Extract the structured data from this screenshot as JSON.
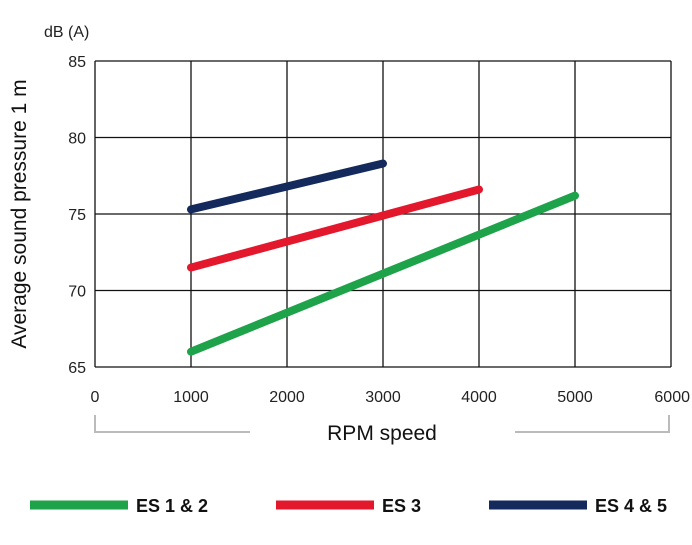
{
  "chart_data": {
    "type": "line",
    "title": "",
    "unit_label": "dB (A)",
    "ylabel": "Average sound pressure 1 m",
    "xlabel": "RPM speed",
    "xlim": [
      0,
      6000
    ],
    "ylim": [
      65,
      85
    ],
    "x_ticks": [
      0,
      1000,
      2000,
      3000,
      4000,
      5000,
      6000
    ],
    "x_tick_labels": [
      "0",
      "1000",
      "2000",
      "3000",
      "4000",
      "5000",
      "6000"
    ],
    "y_ticks": [
      65,
      70,
      75,
      80,
      85
    ],
    "y_tick_labels": [
      "65",
      "70",
      "75",
      "80",
      "85"
    ],
    "grid": true,
    "legend_position": "bottom",
    "series": [
      {
        "name": "ES 1 & 2",
        "color": "#1ea24a",
        "x": [
          1000,
          5000
        ],
        "y": [
          66.0,
          76.2
        ]
      },
      {
        "name": "ES 3",
        "color": "#e3182d",
        "x": [
          1000,
          4000
        ],
        "y": [
          71.5,
          76.6
        ]
      },
      {
        "name": "ES 4 & 5",
        "color": "#142a5c",
        "x": [
          1000,
          3000
        ],
        "y": [
          75.3,
          78.3
        ]
      }
    ]
  }
}
